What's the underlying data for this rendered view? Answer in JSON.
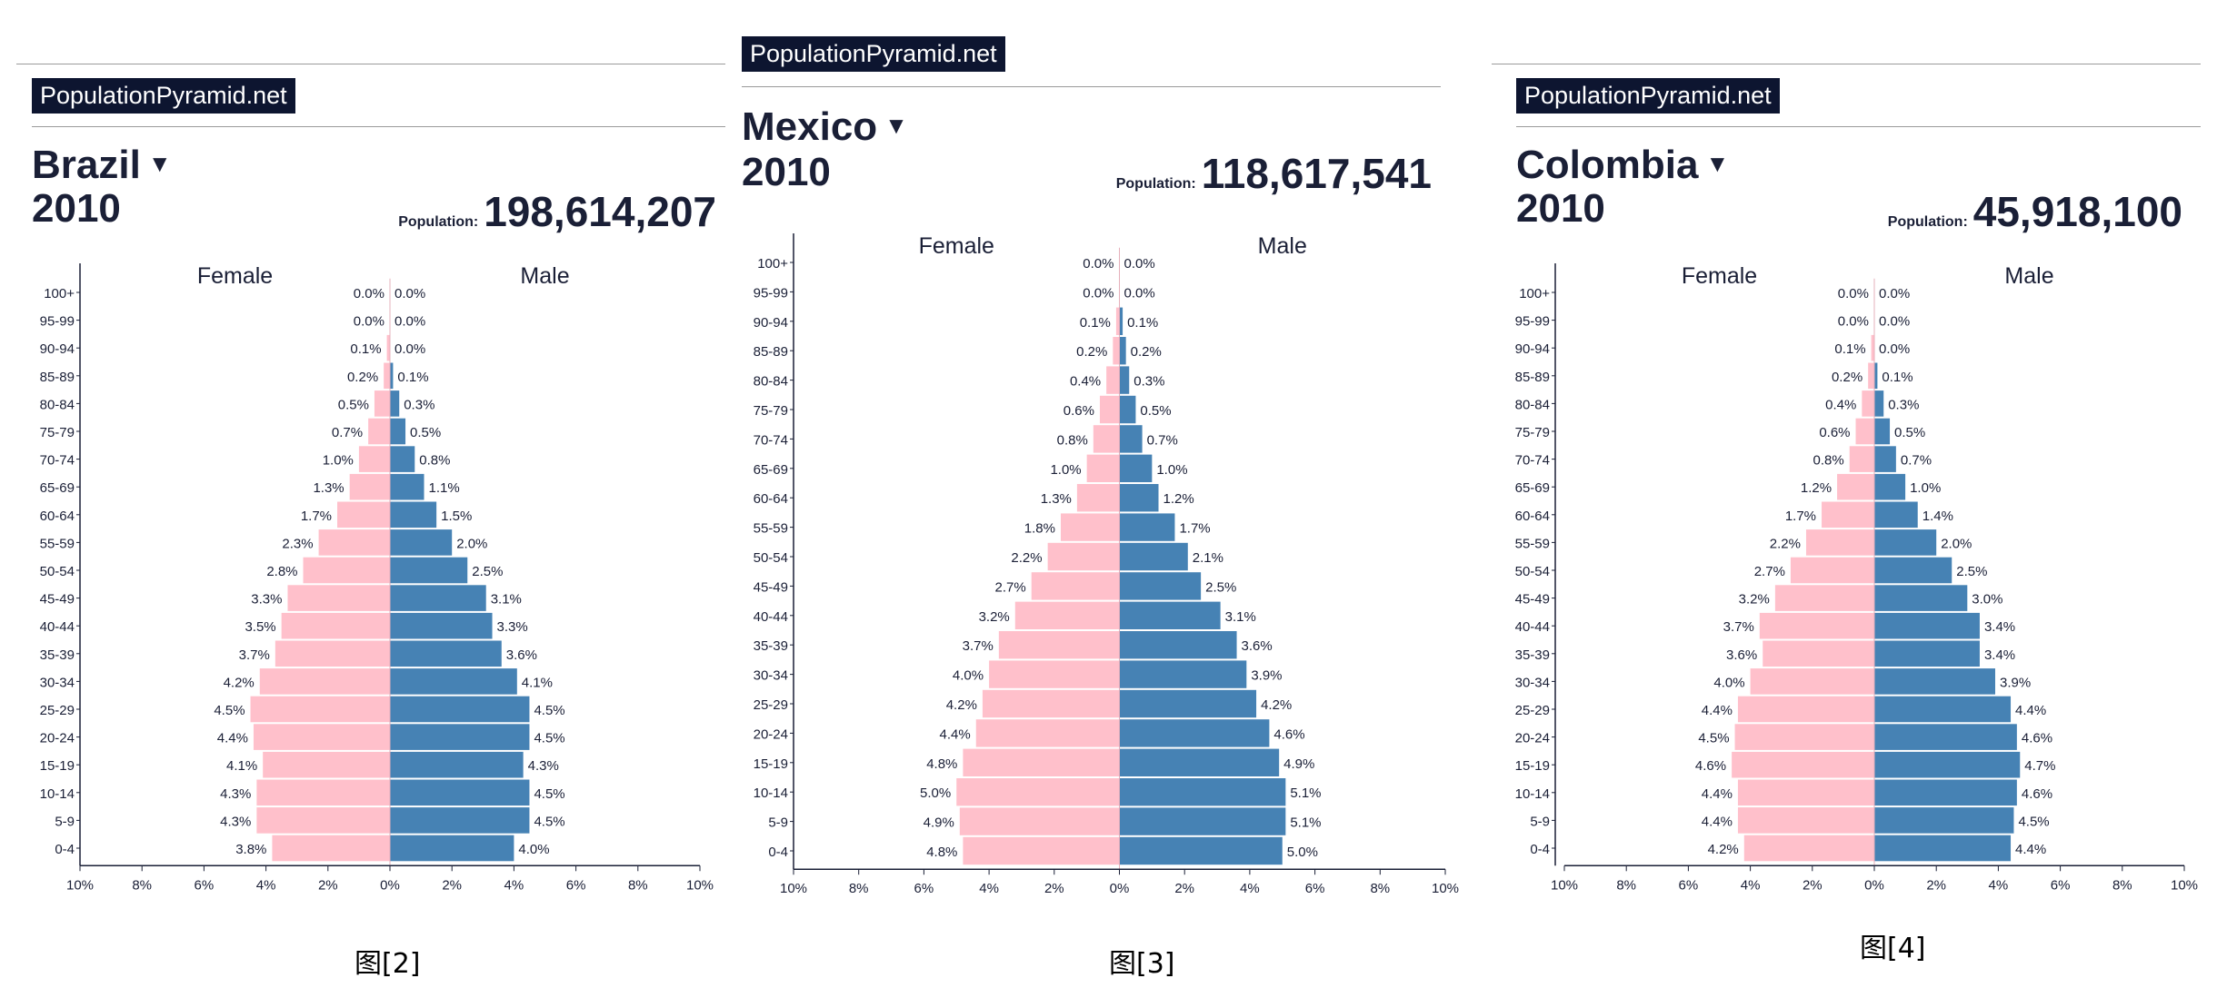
{
  "colors": {
    "female": "#ffc0cb",
    "male": "#4682b4",
    "brand_bg": "#0d1530",
    "text": "#1a1f36"
  },
  "age_groups": [
    "100+",
    "95-99",
    "90-94",
    "85-89",
    "80-84",
    "75-79",
    "70-74",
    "65-69",
    "60-64",
    "55-59",
    "50-54",
    "45-49",
    "40-44",
    "35-39",
    "30-34",
    "25-29",
    "20-24",
    "15-19",
    "10-14",
    "5-9",
    "0-4"
  ],
  "chart_data": [
    {
      "type": "bar",
      "orientation": "horizontal-population-pyramid",
      "brand": "PopulationPyramid.net",
      "title": "Brazil",
      "year": "2010",
      "population_label": "Population:",
      "population_value": "198,614,207",
      "categories": [
        "100+",
        "95-99",
        "90-94",
        "85-89",
        "80-84",
        "75-79",
        "70-74",
        "65-69",
        "60-64",
        "55-59",
        "50-54",
        "45-49",
        "40-44",
        "35-39",
        "30-34",
        "25-29",
        "20-24",
        "15-19",
        "10-14",
        "5-9",
        "0-4"
      ],
      "series": [
        {
          "name": "Female",
          "values": [
            0.0,
            0.0,
            0.1,
            0.2,
            0.5,
            0.7,
            1.0,
            1.3,
            1.7,
            2.3,
            2.8,
            3.3,
            3.5,
            3.7,
            4.2,
            4.5,
            4.4,
            4.1,
            4.3,
            4.3,
            3.8
          ]
        },
        {
          "name": "Male",
          "values": [
            0.0,
            0.0,
            0.0,
            0.1,
            0.3,
            0.5,
            0.8,
            1.1,
            1.5,
            2.0,
            2.5,
            3.1,
            3.3,
            3.6,
            4.1,
            4.5,
            4.5,
            4.3,
            4.5,
            4.5,
            4.0
          ]
        }
      ],
      "xlim": [
        -10,
        10
      ],
      "xticks": [
        "10%",
        "8%",
        "6%",
        "4%",
        "2%",
        "0%",
        "2%",
        "4%",
        "6%",
        "8%",
        "10%"
      ],
      "caption": "图[2]"
    },
    {
      "type": "bar",
      "orientation": "horizontal-population-pyramid",
      "brand": "PopulationPyramid.net",
      "title": "Mexico",
      "year": "2010",
      "population_label": "Population:",
      "population_value": "118,617,541",
      "categories": [
        "100+",
        "95-99",
        "90-94",
        "85-89",
        "80-84",
        "75-79",
        "70-74",
        "65-69",
        "60-64",
        "55-59",
        "50-54",
        "45-49",
        "40-44",
        "35-39",
        "30-34",
        "25-29",
        "20-24",
        "15-19",
        "10-14",
        "5-9",
        "0-4"
      ],
      "series": [
        {
          "name": "Female",
          "values": [
            0.0,
            0.0,
            0.1,
            0.2,
            0.4,
            0.6,
            0.8,
            1.0,
            1.3,
            1.8,
            2.2,
            2.7,
            3.2,
            3.7,
            4.0,
            4.2,
            4.4,
            4.8,
            5.0,
            4.9,
            4.8
          ]
        },
        {
          "name": "Male",
          "values": [
            0.0,
            0.0,
            0.1,
            0.2,
            0.3,
            0.5,
            0.7,
            1.0,
            1.2,
            1.7,
            2.1,
            2.5,
            3.1,
            3.6,
            3.9,
            4.2,
            4.6,
            4.9,
            5.1,
            5.1,
            5.0
          ]
        }
      ],
      "xlim": [
        -10,
        10
      ],
      "xticks": [
        "10%",
        "8%",
        "6%",
        "4%",
        "2%",
        "0%",
        "2%",
        "4%",
        "6%",
        "8%",
        "10%"
      ],
      "caption": "图[3]"
    },
    {
      "type": "bar",
      "orientation": "horizontal-population-pyramid",
      "brand": "PopulationPyramid.net",
      "title": "Colombia",
      "year": "2010",
      "population_label": "Population:",
      "population_value": "45,918,100",
      "categories": [
        "100+",
        "95-99",
        "90-94",
        "85-89",
        "80-84",
        "75-79",
        "70-74",
        "65-69",
        "60-64",
        "55-59",
        "50-54",
        "45-49",
        "40-44",
        "35-39",
        "30-34",
        "25-29",
        "20-24",
        "15-19",
        "10-14",
        "5-9",
        "0-4"
      ],
      "series": [
        {
          "name": "Female",
          "values": [
            0.0,
            0.0,
            0.1,
            0.2,
            0.4,
            0.6,
            0.8,
            1.2,
            1.7,
            2.2,
            2.7,
            3.2,
            3.7,
            3.6,
            4.0,
            4.4,
            4.5,
            4.6,
            4.4,
            4.4,
            4.2
          ]
        },
        {
          "name": "Male",
          "values": [
            0.0,
            0.0,
            0.0,
            0.1,
            0.3,
            0.5,
            0.7,
            1.0,
            1.4,
            2.0,
            2.5,
            3.0,
            3.4,
            3.4,
            3.9,
            4.4,
            4.6,
            4.7,
            4.6,
            4.5,
            4.4
          ]
        }
      ],
      "xlim": [
        -10,
        10
      ],
      "xticks": [
        "10%",
        "8%",
        "6%",
        "4%",
        "2%",
        "0%",
        "2%",
        "4%",
        "6%",
        "8%",
        "10%"
      ],
      "caption": "图[4]"
    }
  ]
}
